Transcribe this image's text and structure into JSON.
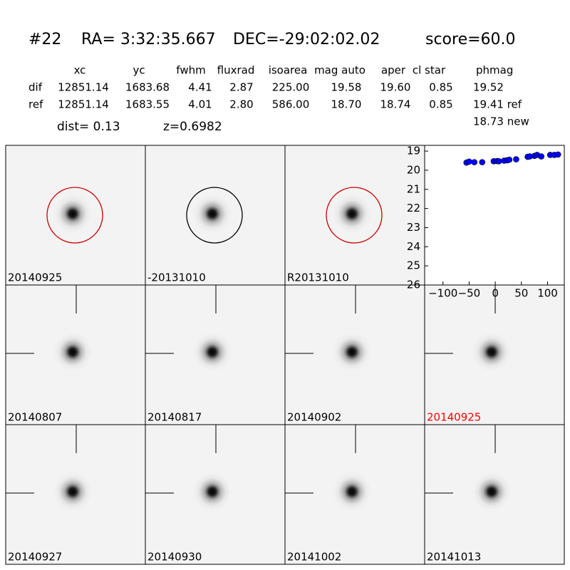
{
  "header": {
    "id": "#22",
    "ra": "RA= 3:32:35.667",
    "dec": "DEC=-29:02:02.02",
    "score": "score=60.0"
  },
  "table": {
    "columns": [
      "xc",
      "yc",
      "fwhm",
      "fluxrad",
      "isoarea",
      "mag auto",
      "aper",
      "cl star",
      "phmag"
    ],
    "rows": [
      {
        "label": "dif",
        "cells": [
          "12851.14",
          "1683.68",
          "4.41",
          "2.87",
          "225.00",
          "19.58",
          "19.60",
          "0.85",
          "19.52"
        ]
      },
      {
        "label": "ref",
        "cells": [
          "12851.14",
          "1683.55",
          "4.01",
          "2.80",
          "586.00",
          "18.70",
          "18.74",
          "0.85",
          "19.41 ref"
        ]
      }
    ],
    "note": "18.73 new"
  },
  "dist": "dist=  0.13",
  "redshift": "z=0.6982",
  "stamps": [
    {
      "label": "20140925",
      "label_color": "#000000",
      "circle_color": "#cc0000"
    },
    {
      "label": "-20131010",
      "label_color": "#000000",
      "circle_color": "#000000"
    },
    {
      "label": "R20131010",
      "label_color": "#000000",
      "circle_color": "#cc0000"
    },
    {
      "label": "20140807",
      "label_color": "#000000",
      "crosshair": true
    },
    {
      "label": "20140817",
      "label_color": "#000000",
      "crosshair": true
    },
    {
      "label": "20140902",
      "label_color": "#000000",
      "crosshair": true
    },
    {
      "label": "20140925",
      "label_color": "#ff0000",
      "crosshair": true
    },
    {
      "label": "20140927",
      "label_color": "#000000",
      "crosshair": true
    },
    {
      "label": "20140930",
      "label_color": "#000000",
      "crosshair": true
    },
    {
      "label": "20141002",
      "label_color": "#000000",
      "crosshair": true
    },
    {
      "label": "20141013",
      "label_color": "#000000",
      "crosshair": true
    }
  ],
  "chart_data": {
    "type": "scatter",
    "color": "#0000ff",
    "x": [
      -55,
      -50,
      -40,
      -25,
      -3,
      3,
      7,
      17,
      23,
      27,
      40,
      62,
      66,
      75,
      80,
      88,
      105,
      113,
      120
    ],
    "values": [
      19.6,
      19.55,
      19.58,
      19.58,
      19.53,
      19.52,
      19.53,
      19.5,
      19.48,
      19.45,
      19.43,
      19.3,
      19.28,
      19.25,
      19.2,
      19.28,
      19.2,
      19.2,
      19.18
    ],
    "xlim": [
      -135,
      132
    ],
    "ylim": [
      26,
      18.7
    ],
    "xticks": [
      {
        "value": -100,
        "label": "−100"
      },
      {
        "value": -50,
        "label": "−50"
      },
      0,
      50,
      100
    ],
    "yticks": [
      19,
      20,
      21,
      22,
      23,
      24,
      25,
      26
    ]
  }
}
